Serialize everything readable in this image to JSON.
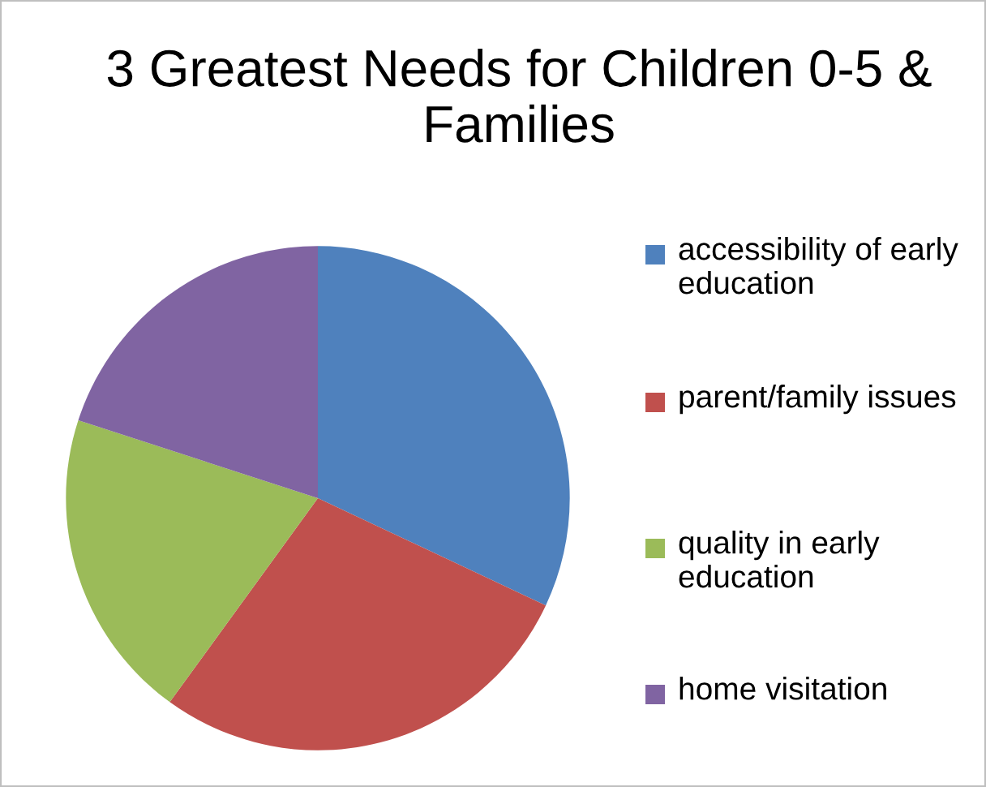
{
  "chart_data": {
    "type": "pie",
    "title": "3 Greatest Needs for Children 0-5 & Families",
    "categories": [
      "accessibility of early education",
      "parent/family issues",
      "quality in early education",
      "home visitation"
    ],
    "values": [
      32,
      28,
      20,
      20
    ],
    "colors": [
      "#4f81bd",
      "#c0504d",
      "#9bbb59",
      "#8064a2"
    ],
    "legend": "right"
  }
}
